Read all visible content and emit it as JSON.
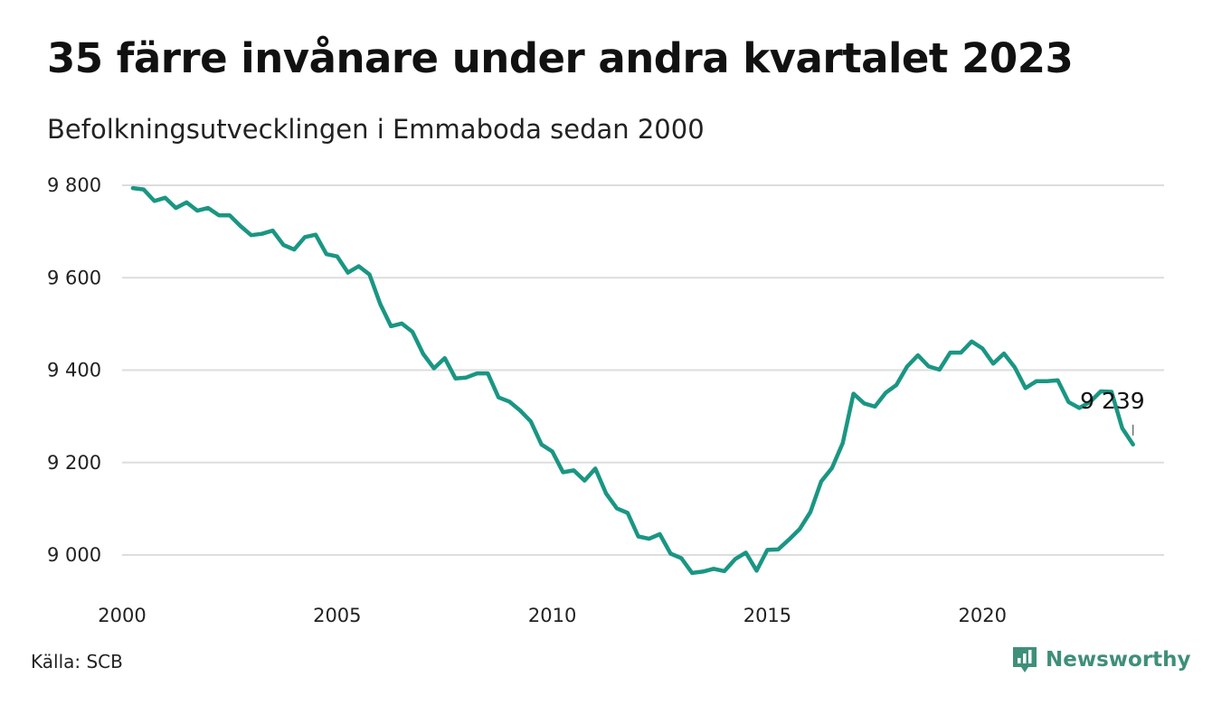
{
  "title": "35 färre invånare under andra kvartalet 2023",
  "subtitle": "Befolkningsutvecklingen i Emmaboda sedan 2000",
  "source": "Källa: SCB",
  "brand": "Newsworthy",
  "colors": {
    "line": "#1a9683",
    "grid": "#dddddd",
    "brand": "#3f8f7a"
  },
  "icons": {
    "brand_logo": "newsworthy-bar-chart-icon"
  },
  "chart_data": {
    "type": "line",
    "title": "35 färre invånare under andra kvartalet 2023",
    "subtitle": "Befolkningsutvecklingen i Emmaboda sedan 2000",
    "xlim": [
      2000,
      2024
    ],
    "ylim": [
      8920,
      9830
    ],
    "x_ticks": [
      2000,
      2005,
      2010,
      2015,
      2020
    ],
    "x_tick_labels": [
      "2000",
      "2005",
      "2010",
      "2015",
      "2020"
    ],
    "y_ticks": [
      9000,
      9200,
      9400,
      9600,
      9800
    ],
    "y_tick_labels": [
      "9 000",
      "9 200",
      "9 400",
      "9 600",
      "9 800"
    ],
    "grid": "horizontal",
    "end_label": "9 239",
    "series": [
      {
        "x": [
          2000.25,
          2000.5,
          2000.75,
          2001.0,
          2001.25,
          2001.5,
          2001.75,
          2002.0,
          2002.25,
          2002.5,
          2002.75,
          2003.0,
          2003.25,
          2003.5,
          2003.75,
          2004.0,
          2004.25,
          2004.5,
          2004.75,
          2005.0,
          2005.25,
          2005.5,
          2005.75,
          2006.0,
          2006.25,
          2006.5,
          2006.75,
          2007.0,
          2007.25,
          2007.5,
          2007.75,
          2008.0,
          2008.25,
          2008.5,
          2008.75,
          2009.0,
          2009.25,
          2009.5,
          2009.75,
          2010.0,
          2010.25,
          2010.5,
          2010.75,
          2011.0,
          2011.25,
          2011.5,
          2011.75,
          2012.0,
          2012.25,
          2012.5,
          2012.75,
          2013.0,
          2013.25,
          2013.5,
          2013.75,
          2014.0,
          2014.25,
          2014.5,
          2014.75,
          2015.0,
          2015.25,
          2015.5,
          2015.75,
          2016.0,
          2016.25,
          2016.5,
          2016.75,
          2017.0,
          2017.25,
          2017.5,
          2017.75,
          2018.0,
          2018.25,
          2018.5,
          2018.75,
          2019.0,
          2019.25,
          2019.5,
          2019.75,
          2020.0,
          2020.25,
          2020.5,
          2020.75,
          2021.0,
          2021.25,
          2021.5,
          2021.75,
          2022.0,
          2022.25,
          2022.5,
          2022.75,
          2023.0,
          2023.25,
          2023.5
        ],
        "values": [
          9794,
          9791,
          9766,
          9773,
          9751,
          9763,
          9745,
          9751,
          9735,
          9735,
          9712,
          9692,
          9695,
          9702,
          9671,
          9661,
          9688,
          9693,
          9651,
          9646,
          9611,
          9625,
          9607,
          9543,
          9495,
          9501,
          9483,
          9435,
          9404,
          9426,
          9382,
          9384,
          9393,
          9393,
          9341,
          9332,
          9313,
          9289,
          9239,
          9224,
          9179,
          9183,
          9161,
          9187,
          9133,
          9101,
          9091,
          9040,
          9035,
          9045,
          9003,
          8993,
          8961,
          8964,
          8970,
          8965,
          8991,
          9005,
          8966,
          9011,
          9012,
          9033,
          9056,
          9093,
          9159,
          9188,
          9242,
          9349,
          9328,
          9321,
          9351,
          9368,
          9408,
          9432,
          9408,
          9401,
          9438,
          9438,
          9462,
          9447,
          9414,
          9436,
          9406,
          9361,
          9376,
          9376,
          9378,
          9331,
          9318,
          9331,
          9354,
          9353,
          9274,
          9239
        ]
      }
    ]
  }
}
